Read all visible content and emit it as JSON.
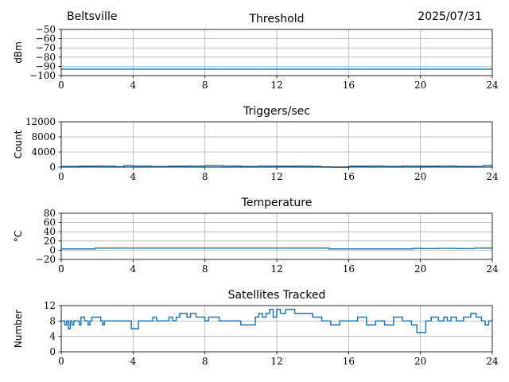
{
  "header": {
    "location": "Beltsville",
    "date": "2025/07/31"
  },
  "style": {
    "line_color": "#1f77b4",
    "grid_color": "#b0b0b0",
    "axis_color": "#000000"
  },
  "chart_data": [
    {
      "type": "line",
      "title": "Threshold",
      "xlabel": "",
      "ylabel": "dBm",
      "xlim": [
        0,
        24
      ],
      "ylim": [
        -100,
        -50
      ],
      "xticks": [
        0,
        4,
        8,
        12,
        16,
        20,
        24
      ],
      "yticks": [
        -100,
        -90,
        -80,
        -70,
        -60,
        -50
      ],
      "ytick_labels": [
        "−100",
        "−90",
        "−80",
        "−70",
        "−60",
        "−50"
      ],
      "grid": true,
      "series": [
        {
          "x": [
            0,
            24
          ],
          "y": [
            -93,
            -93
          ]
        }
      ]
    },
    {
      "type": "line",
      "title": "Triggers/sec",
      "xlabel": "",
      "ylabel": "Count",
      "xlim": [
        0,
        24
      ],
      "ylim": [
        0,
        12000
      ],
      "xticks": [
        0,
        4,
        8,
        12,
        16,
        20,
        24
      ],
      "yticks": [
        0,
        4000,
        8000,
        12000
      ],
      "ytick_labels": [
        "0",
        "4000",
        "8000",
        "12000"
      ],
      "grid": true,
      "series": [
        {
          "x": [
            0,
            1,
            2,
            3,
            3.5,
            4,
            5,
            6,
            7,
            8,
            9,
            10,
            11,
            12,
            13,
            14,
            14.5,
            15,
            15.5,
            16,
            17,
            18,
            19,
            20,
            21,
            22,
            23,
            23.5,
            24
          ],
          "y": [
            200,
            250,
            300,
            100,
            400,
            300,
            150,
            250,
            300,
            350,
            300,
            200,
            300,
            250,
            300,
            200,
            50,
            0,
            0,
            250,
            300,
            200,
            300,
            250,
            300,
            200,
            150,
            400,
            350
          ]
        }
      ]
    },
    {
      "type": "line",
      "title": "Temperature",
      "xlabel": "",
      "ylabel": "°C",
      "xlim": [
        0,
        24
      ],
      "ylim": [
        -20,
        80
      ],
      "xticks": [
        0,
        4,
        8,
        12,
        16,
        20,
        24
      ],
      "yticks": [
        -20,
        0,
        20,
        40,
        60,
        80
      ],
      "ytick_labels": [
        "−20",
        "0",
        "20",
        "40",
        "60",
        "80"
      ],
      "grid": true,
      "series": [
        {
          "x": [
            0,
            1.8,
            1.9,
            14.8,
            14.9,
            19.3,
            19.6,
            20,
            21,
            22,
            23,
            24
          ],
          "y": [
            3,
            3,
            4.5,
            4.5,
            3,
            3,
            4,
            3.5,
            4,
            3.5,
            4.5,
            4
          ]
        }
      ]
    },
    {
      "type": "line",
      "title": "Satellites Tracked",
      "xlabel": "",
      "ylabel": "Number",
      "xlim": [
        0,
        24
      ],
      "ylim": [
        0,
        12
      ],
      "xticks": [
        0,
        4,
        8,
        12,
        16,
        20,
        24
      ],
      "yticks": [
        0,
        4,
        8,
        12
      ],
      "ytick_labels": [
        "0",
        "4",
        "8",
        "12"
      ],
      "grid": true,
      "series": [
        {
          "x": [
            0,
            0.2,
            0.3,
            0.4,
            0.5,
            0.6,
            0.7,
            1.0,
            1.1,
            1.3,
            1.5,
            1.6,
            1.7,
            2.2,
            2.3,
            2.4,
            3.8,
            3.9,
            4.2,
            4.3,
            5.0,
            5.1,
            5.3,
            5.5,
            6.0,
            6.2,
            6.4,
            6.6,
            7.0,
            7.2,
            7.5,
            8.0,
            8.2,
            8.8,
            9.5,
            10.0,
            10.5,
            10.8,
            11.0,
            11.2,
            11.4,
            11.6,
            11.8,
            12.0,
            12.2,
            12.5,
            13.0,
            13.5,
            14.0,
            14.5,
            15.0,
            15.5,
            16.0,
            16.5,
            17.0,
            17.5,
            18.0,
            18.5,
            19.0,
            19.5,
            19.7,
            19.8,
            20.3,
            20.6,
            21.0,
            21.3,
            21.5,
            21.7,
            22.0,
            22.4,
            22.8,
            23.1,
            23.4,
            23.6,
            23.8,
            24.0
          ],
          "y": [
            8,
            7,
            8,
            6,
            8,
            7,
            8,
            7,
            9,
            8,
            7,
            8,
            9,
            8,
            7,
            8,
            8,
            6,
            6,
            8,
            8,
            9,
            8,
            8,
            9,
            8,
            9,
            10,
            9,
            10,
            9,
            8,
            9,
            8,
            8,
            7,
            7,
            9,
            10,
            9,
            10,
            11,
            9,
            11,
            10,
            11,
            10,
            10,
            9,
            8,
            7,
            8,
            8,
            9,
            7,
            8,
            7,
            9,
            8,
            7,
            7,
            5,
            8,
            9,
            8,
            9,
            8,
            9,
            8,
            9,
            10,
            9,
            8,
            7,
            8,
            8
          ]
        }
      ]
    }
  ]
}
